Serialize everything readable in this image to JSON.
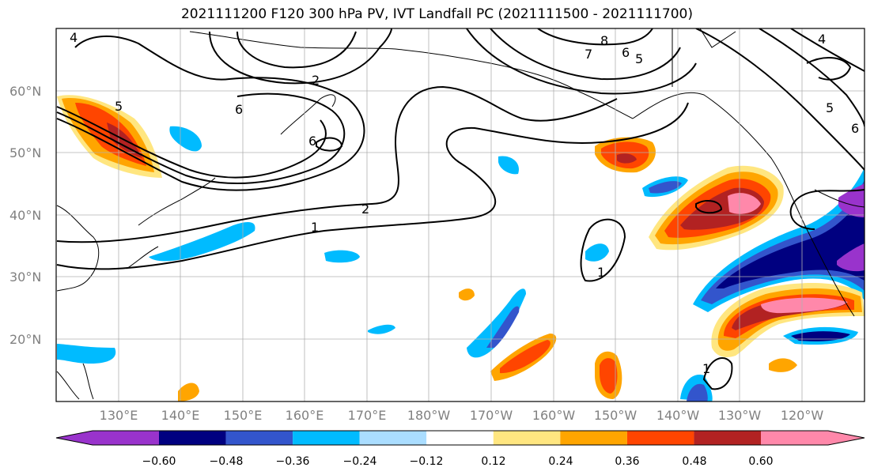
{
  "title": "2021111200 F120 300 hPa PV, IVT Landfall PC (2021111500 - 2021111700)",
  "lat_labels": [
    "60°N",
    "50°N",
    "40°N",
    "30°N",
    "20°N"
  ],
  "lon_labels": [
    "130°E",
    "140°E",
    "150°E",
    "160°E",
    "170°E",
    "180°W",
    "170°W",
    "160°W",
    "150°W",
    "140°W",
    "130°W",
    "120°W"
  ],
  "colorbar": {
    "ticks": [
      "−0.60",
      "−0.48",
      "−0.36",
      "−0.24",
      "−0.12",
      "0.12",
      "0.24",
      "0.36",
      "0.48",
      "0.60"
    ],
    "colors": [
      "#9933cc",
      "#000080",
      "#3355cc",
      "#00bbff",
      "#aaddff",
      "#ffffff",
      "#ffe680",
      "#ffa500",
      "#ff4500",
      "#b22222",
      "#ff88aa"
    ]
  },
  "contour_labels": [
    "1",
    "2",
    "2",
    "5",
    "6",
    "6",
    "7",
    "8",
    "4",
    "5",
    "6",
    "4",
    "5",
    "1",
    "1",
    "6"
  ],
  "chart_data": {
    "type": "map",
    "extent": {
      "lon_min": 120,
      "lon_max": 250,
      "lat_min": 10,
      "lat_max": 70
    },
    "contour_variable": "300 hPa PV",
    "shaded_variable": "IVT Landfall PC",
    "contour_levels": [
      1,
      2,
      4,
      5,
      6,
      7,
      8
    ],
    "shading_levels": [
      -0.6,
      -0.48,
      -0.36,
      -0.24,
      -0.12,
      0.12,
      0.24,
      0.36,
      0.48,
      0.6
    ]
  }
}
